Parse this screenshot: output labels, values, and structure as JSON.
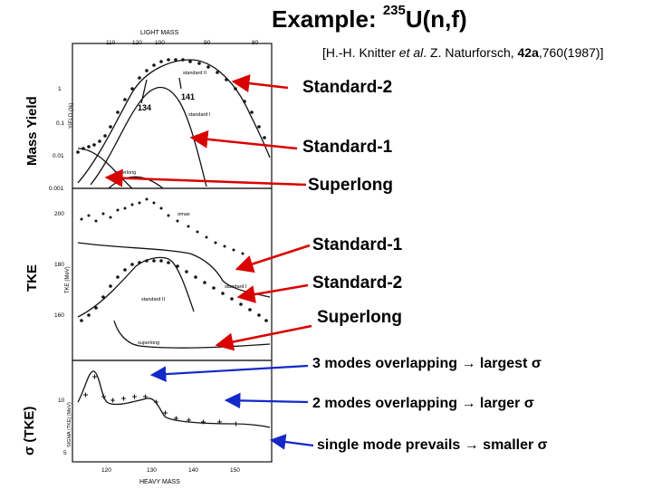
{
  "slide": {
    "title_main": "Example: ",
    "title_sup": "235",
    "title_tail": "U(n,f)",
    "reference_pre": "[H.-H. Knitter ",
    "reference_etal": "et al",
    "reference_mid": ". Z. Naturforsch, ",
    "reference_vol": "42a",
    "reference_post": ",760(1987)]"
  },
  "axis_labels": {
    "mass_yield": "Mass Yield",
    "tke": "TKE",
    "sigma_tke": "σ (TKE)"
  },
  "annotations": {
    "yield_standard2": "Standard-2",
    "yield_standard1": "Standard-1",
    "yield_superlong": "Superlong",
    "tke_standard1": "Standard-1",
    "tke_standard2": "Standard-2",
    "tke_superlong": "Superlong",
    "sigma_3modes": "3 modes overlapping → largest σ",
    "sigma_2modes": "2 modes overlapping → larger σ",
    "sigma_single": "single mode prevails → smaller σ"
  },
  "figure": {
    "top_axis_label": "LIGHT MASS",
    "top_ticks": [
      "110",
      "120",
      "100",
      "90",
      "80"
    ],
    "bottom_axis_label": "HEAVY MASS",
    "bottom_ticks": [
      "120",
      "130",
      "140",
      "150"
    ],
    "yield_ylabel": "YIELD (%)",
    "yield_ticks": [
      "1",
      "0.1",
      "0.01",
      "0.001"
    ],
    "yield_peak_labels": [
      "134",
      "141"
    ],
    "yield_curve_labels": [
      "standard II",
      "standard I",
      "superlong"
    ],
    "tke_ylabel": "TKE (MeV)",
    "tke_ticks": [
      "200",
      "180",
      "160"
    ],
    "tke_curve_labels": [
      "σmax",
      "standard I",
      "standard II",
      "superlong"
    ],
    "sigma_ylabel": "SIGMA (TKE) (MeV)",
    "sigma_ticks": [
      "10",
      "5"
    ]
  },
  "colors": {
    "arrow": "#d90000",
    "arrow_blue": "#1428c8"
  }
}
